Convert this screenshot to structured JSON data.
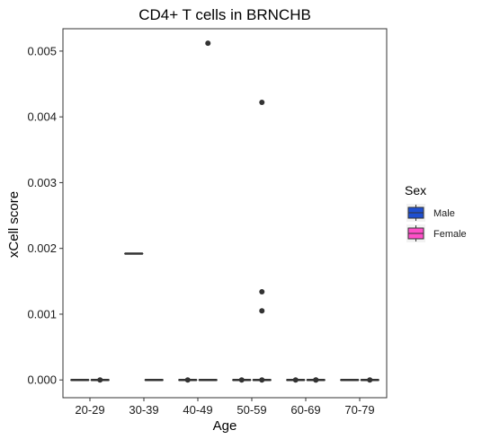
{
  "chart_data": {
    "type": "box",
    "title": "CD4+ T cells in BRNCHB",
    "xlabel": "Age",
    "ylabel": "xCell score",
    "categories": [
      "20-29",
      "30-39",
      "40-49",
      "50-59",
      "60-69",
      "70-79"
    ],
    "ylim": [
      -0.00027,
      0.00534
    ],
    "yticks": [
      0,
      0.001,
      0.002,
      0.003,
      0.004,
      0.005
    ],
    "ytick_labels": [
      "0.000",
      "0.001",
      "0.002",
      "0.003",
      "0.004",
      "0.005"
    ],
    "grid": false,
    "legend": {
      "title": "Sex",
      "placement": "right"
    },
    "series": [
      {
        "name": "Male",
        "color": "#1f4fd1",
        "boxes": [
          {
            "category": "20-29",
            "median": 0,
            "q1": 0,
            "q3": 0,
            "whisker_low": 0,
            "whisker_high": 0,
            "outliers": []
          },
          {
            "category": "30-39",
            "median": 0.00192,
            "q1": 0.00192,
            "q3": 0.00192,
            "whisker_low": 0.00192,
            "whisker_high": 0.00192,
            "outliers": []
          },
          {
            "category": "40-49",
            "median": 0,
            "q1": 0,
            "q3": 0,
            "whisker_low": 0,
            "whisker_high": 0,
            "outliers": [
              0
            ]
          },
          {
            "category": "50-59",
            "median": 0,
            "q1": 0,
            "q3": 0,
            "whisker_low": 0,
            "whisker_high": 0,
            "outliers": [
              0
            ]
          },
          {
            "category": "60-69",
            "median": 0,
            "q1": 0,
            "q3": 0,
            "whisker_low": 0,
            "whisker_high": 0,
            "outliers": [
              0
            ]
          },
          {
            "category": "70-79",
            "median": 0,
            "q1": 0,
            "q3": 0,
            "whisker_low": 0,
            "whisker_high": 0,
            "outliers": []
          }
        ]
      },
      {
        "name": "Female",
        "color": "#ff4fc8",
        "boxes": [
          {
            "category": "20-29",
            "median": 0,
            "q1": 0,
            "q3": 0,
            "whisker_low": 0,
            "whisker_high": 0,
            "outliers": [
              0
            ]
          },
          {
            "category": "30-39",
            "median": 0,
            "q1": 0,
            "q3": 0,
            "whisker_low": 0,
            "whisker_high": 0,
            "outliers": []
          },
          {
            "category": "40-49",
            "median": 0,
            "q1": 0,
            "q3": 0,
            "whisker_low": 0,
            "whisker_high": 0,
            "outliers": [
              0.00512
            ]
          },
          {
            "category": "50-59",
            "median": 0,
            "q1": 0,
            "q3": 0,
            "whisker_low": 0,
            "whisker_high": 0,
            "outliers": [
              0.00422,
              0.00134,
              0.00105,
              0
            ]
          },
          {
            "category": "60-69",
            "median": 0,
            "q1": 0,
            "q3": 0,
            "whisker_low": 0,
            "whisker_high": 0,
            "outliers": [
              0,
              0
            ]
          },
          {
            "category": "70-79",
            "median": 0,
            "q1": 0,
            "q3": 0,
            "whisker_low": 0,
            "whisker_high": 0,
            "outliers": [
              0
            ]
          }
        ]
      }
    ]
  }
}
